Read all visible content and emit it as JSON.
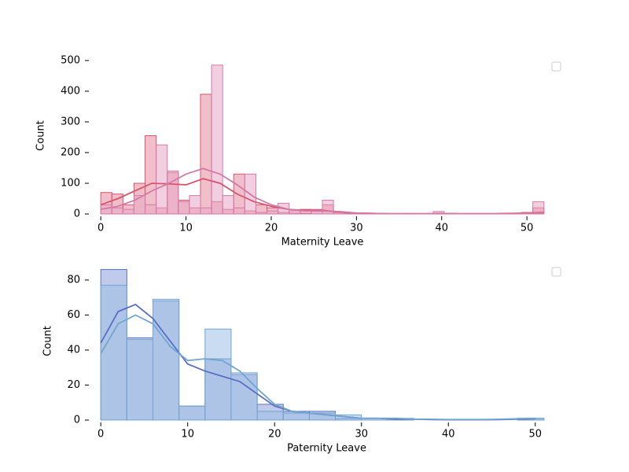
{
  "chart_data": [
    {
      "type": "histogram",
      "xlabel": "Maternity Leave",
      "ylabel": "Count",
      "xlim": [
        -2.6,
        54.6
      ],
      "ylim": [
        0,
        510
      ],
      "xticks": [
        0,
        10,
        20,
        30,
        40,
        50
      ],
      "yticks": [
        0,
        100,
        200,
        300,
        400,
        500
      ],
      "series": [
        {
          "color": "#d9546e",
          "fill": "#e58a9f",
          "bins": [
            0,
            1.3,
            2.6,
            3.9,
            5.2,
            6.5,
            7.8,
            9.1,
            10.4,
            11.7,
            13,
            14.3,
            15.6,
            16.9,
            18.2,
            19.5,
            20.8,
            22.1,
            23.4,
            24.7,
            26,
            27.3,
            28.6,
            29.9,
            31.2,
            32.5,
            33.8,
            35.1,
            36.4,
            37.7,
            39,
            40.3,
            41.6,
            42.9,
            44.2,
            45.5,
            46.8,
            48.1,
            49.4,
            50.7,
            52
          ],
          "values": [
            70,
            65,
            30,
            100,
            255,
            20,
            135,
            45,
            20,
            390,
            40,
            15,
            130,
            10,
            30,
            20,
            5,
            3,
            15,
            10,
            30,
            5,
            2,
            2,
            1,
            1,
            1,
            1,
            1,
            1,
            1,
            2,
            1,
            1,
            1,
            1,
            2,
            1,
            5,
            20
          ],
          "kde": {
            "x": [
              0,
              2,
              4,
              6,
              8,
              10,
              12,
              14,
              16,
              18,
              20,
              22,
              24,
              26,
              28,
              30,
              32,
              34,
              36,
              38,
              40,
              42,
              44,
              46,
              48,
              50,
              52
            ],
            "values": [
              30,
              50,
              75,
              100,
              98,
              95,
              115,
              100,
              65,
              40,
              25,
              15,
              12,
              12,
              6,
              3,
              2,
              1,
              1,
              1,
              1,
              1,
              1,
              1,
              2,
              3,
              5
            ]
          }
        },
        {
          "color": "#d37aa5",
          "fill": "#e6a8c6",
          "bins": [
            0,
            1.3,
            2.6,
            3.9,
            5.2,
            6.5,
            7.8,
            9.1,
            10.4,
            11.7,
            13,
            14.3,
            15.6,
            16.9,
            18.2,
            19.5,
            20.8,
            22.1,
            23.4,
            24.7,
            26,
            27.3,
            28.6,
            29.9,
            31.2,
            32.5,
            33.8,
            35.1,
            36.4,
            37.7,
            39,
            40.3,
            41.6,
            42.9,
            44.2,
            45.5,
            46.8,
            48.1,
            49.4,
            50.7,
            52
          ],
          "values": [
            30,
            20,
            15,
            60,
            30,
            225,
            140,
            40,
            60,
            20,
            485,
            60,
            20,
            130,
            5,
            10,
            35,
            10,
            2,
            15,
            45,
            5,
            2,
            2,
            1,
            1,
            1,
            1,
            1,
            1,
            8,
            1,
            1,
            1,
            1,
            1,
            1,
            1,
            1,
            40
          ],
          "kde": {
            "x": [
              0,
              2,
              4,
              6,
              8,
              10,
              12,
              14,
              16,
              18,
              20,
              22,
              24,
              26,
              28,
              30,
              32,
              34,
              36,
              38,
              40,
              42,
              44,
              46,
              48,
              50,
              52
            ],
            "values": [
              15,
              25,
              45,
              75,
              100,
              130,
              148,
              130,
              95,
              55,
              30,
              15,
              10,
              10,
              8,
              3,
              2,
              1,
              1,
              1,
              2,
              1,
              1,
              1,
              1,
              2,
              3
            ]
          }
        }
      ]
    },
    {
      "type": "histogram",
      "xlabel": "Paternity Leave",
      "ylabel": "Count",
      "xlim": [
        -2.55,
        53.55
      ],
      "ylim": [
        0,
        90.3
      ],
      "xticks": [
        0,
        10,
        20,
        30,
        40,
        50
      ],
      "yticks": [
        0,
        20,
        40,
        60,
        80
      ],
      "series": [
        {
          "color": "#5a6fc4",
          "fill": "#8d9fdb",
          "bins": [
            0,
            3,
            6,
            9,
            12,
            15,
            18,
            21,
            24,
            27,
            30,
            33,
            36,
            39,
            42,
            45,
            48,
            51
          ],
          "values": [
            86,
            47,
            68,
            8,
            35,
            26,
            9,
            5,
            5,
            1,
            0,
            0,
            0,
            0,
            0,
            0,
            1
          ],
          "kde": {
            "x": [
              0,
              2,
              4,
              6,
              8,
              10,
              12,
              14,
              16,
              18,
              20,
              22,
              24,
              26,
              28,
              30,
              32,
              34,
              36,
              38,
              40,
              42,
              44,
              46,
              48,
              50
            ],
            "values": [
              44,
              62,
              66,
              58,
              45,
              32,
              28,
              25,
              22,
              15,
              8,
              5,
              4,
              3,
              2,
              1,
              1,
              0.5,
              0.5,
              0.3,
              0.2,
              0.2,
              0.2,
              0.3,
              0.5,
              0.8
            ]
          }
        },
        {
          "color": "#72a5cf",
          "fill": "#9dc0e4",
          "bins": [
            0,
            3,
            6,
            9,
            12,
            15,
            18,
            21,
            24,
            27,
            30,
            33,
            36,
            39,
            42,
            45,
            48,
            51
          ],
          "values": [
            77,
            46,
            69,
            8,
            52,
            27,
            5,
            4,
            4,
            3,
            1,
            1,
            0,
            0,
            0,
            0,
            1
          ],
          "kde": {
            "x": [
              0,
              2,
              4,
              6,
              8,
              10,
              12,
              14,
              16,
              18,
              20,
              22,
              24,
              26,
              28,
              30,
              32,
              34,
              36,
              38,
              40,
              42,
              44,
              46,
              48,
              50
            ],
            "values": [
              38,
              55,
              60,
              55,
              42,
              34,
              35,
              34,
              28,
              18,
              9,
              5,
              4,
              3,
              2,
              1,
              1,
              1,
              0.5,
              0.5,
              0.3,
              0.3,
              0.3,
              0.5,
              0.8,
              1
            ]
          }
        }
      ]
    }
  ]
}
